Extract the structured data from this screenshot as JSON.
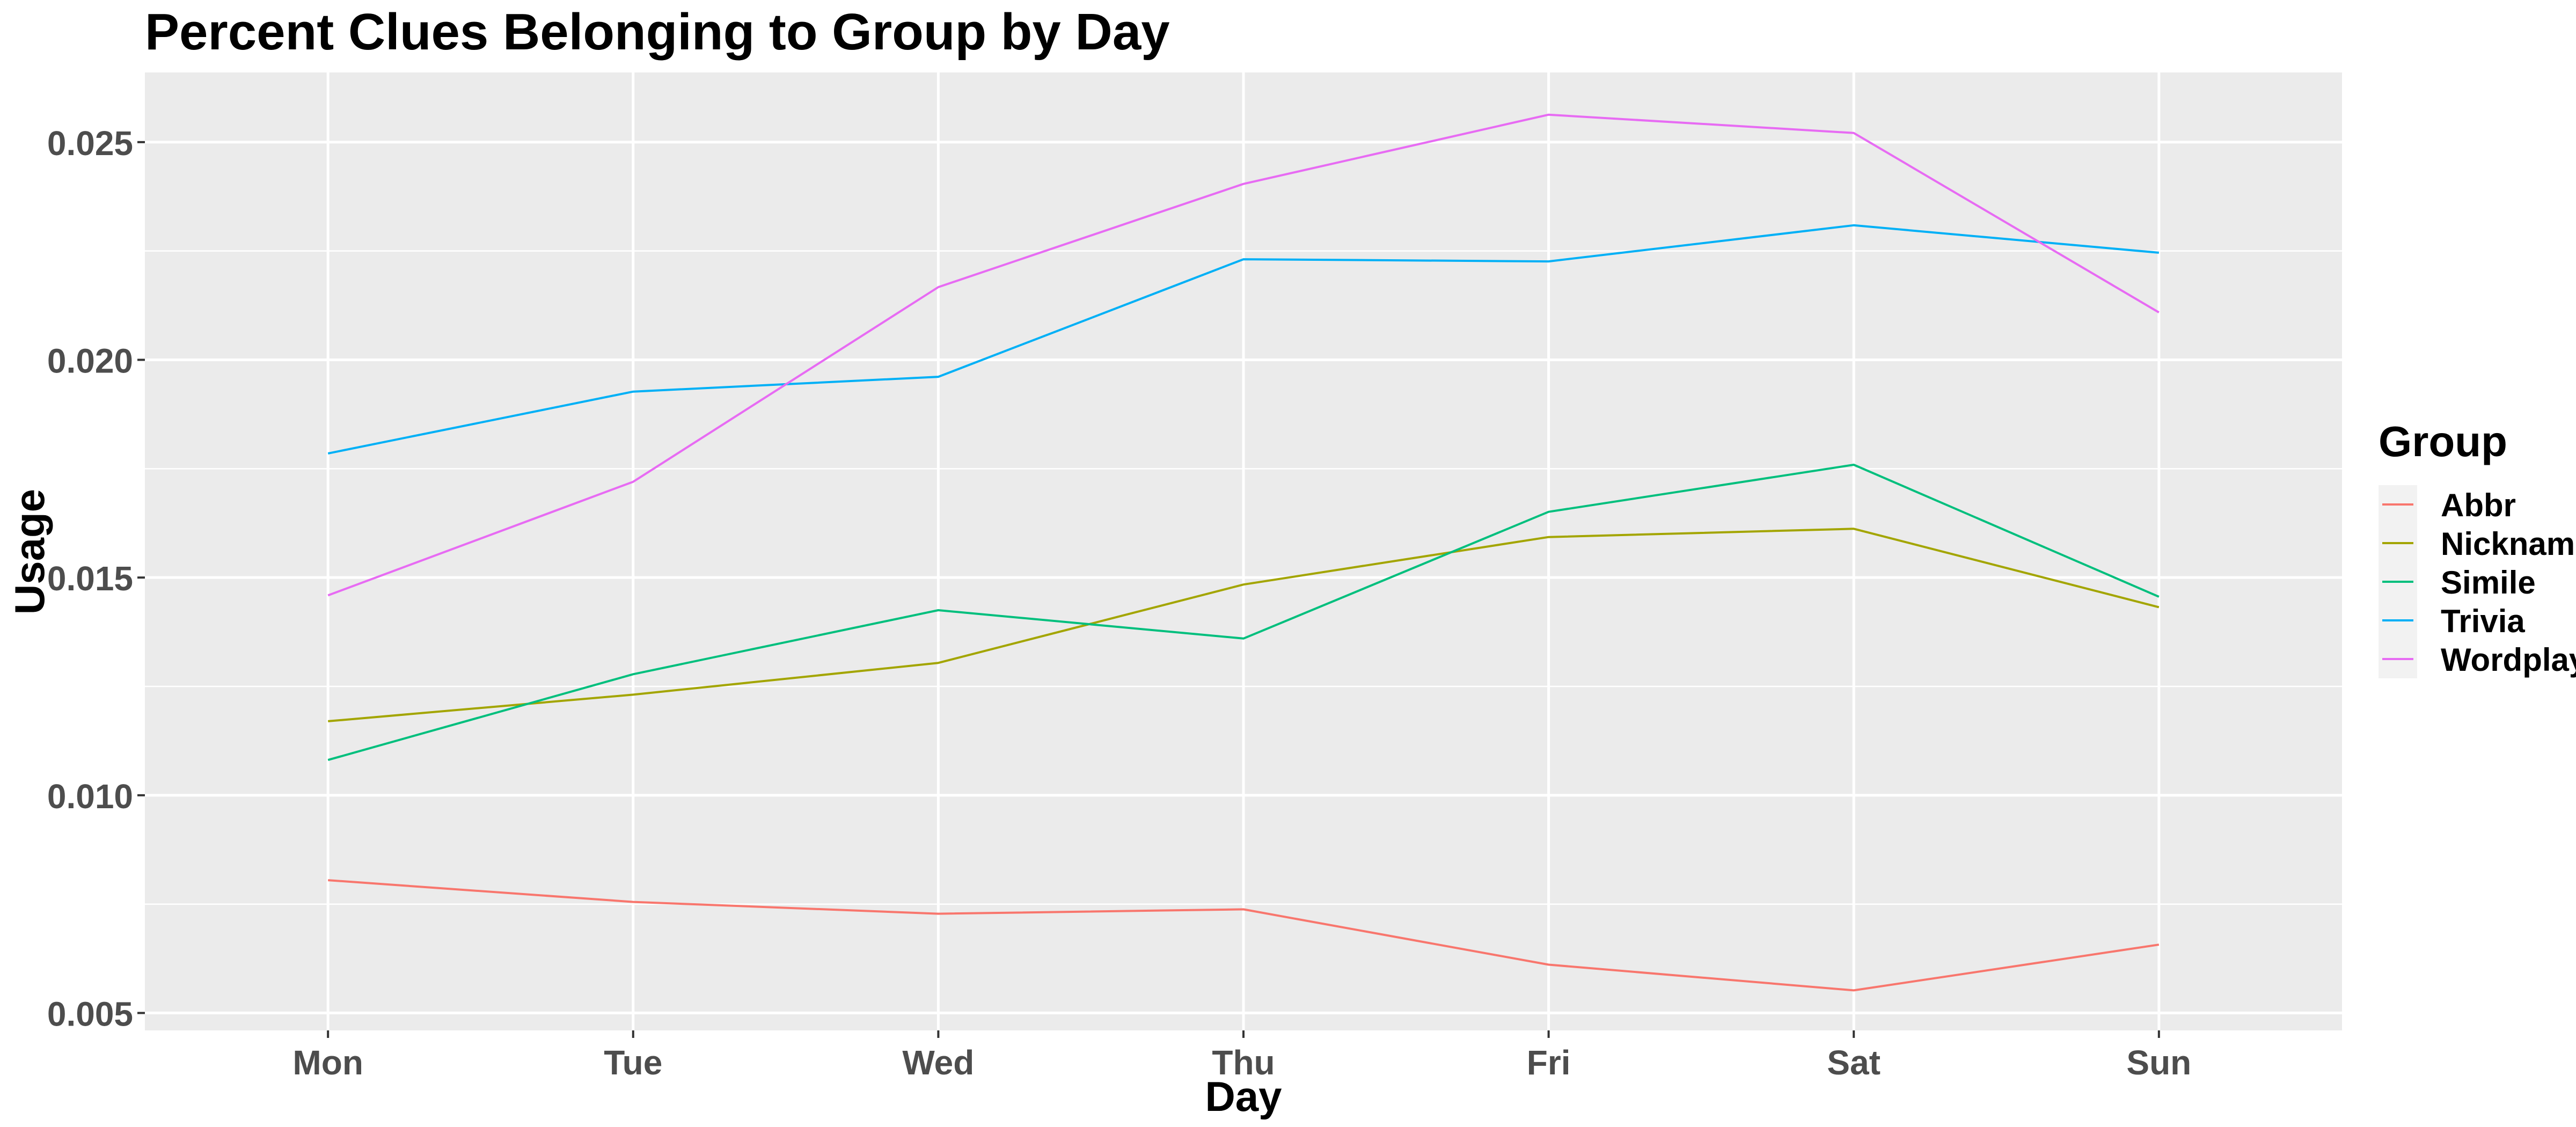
{
  "chart_data": {
    "type": "line",
    "title": "Percent Clues Belonging to Group by Day",
    "xlabel": "Day",
    "ylabel": "Usage",
    "categories": [
      "Mon",
      "Tue",
      "Wed",
      "Thu",
      "Fri",
      "Sat",
      "Sun"
    ],
    "ylim": [
      0.0046,
      0.0266
    ],
    "yticks": [
      0.005,
      0.01,
      0.015,
      0.02,
      0.025
    ],
    "ytick_labels": [
      "0.005",
      "0.010",
      "0.015",
      "0.020",
      "0.025"
    ],
    "grid": true,
    "legend": {
      "title": "Group",
      "position": "right"
    },
    "series": [
      {
        "name": "Abbr",
        "color": "#F8766D",
        "values": [
          0.00805,
          0.00755,
          0.00728,
          0.00738,
          0.00611,
          0.00552,
          0.00657
        ]
      },
      {
        "name": "Nickname",
        "color": "#A3A500",
        "values": [
          0.0117,
          0.01231,
          0.01304,
          0.01484,
          0.01593,
          0.01612,
          0.01432
        ]
      },
      {
        "name": "Simile",
        "color": "#00BF7D",
        "values": [
          0.01081,
          0.01278,
          0.01425,
          0.0136,
          0.01651,
          0.01759,
          0.01456
        ]
      },
      {
        "name": "Trivia",
        "color": "#00B0F6",
        "values": [
          0.01785,
          0.01927,
          0.01961,
          0.02231,
          0.02226,
          0.02309,
          0.02246
        ]
      },
      {
        "name": "Wordplay",
        "color": "#E76BF3",
        "values": [
          0.01459,
          0.0172,
          0.02167,
          0.02404,
          0.02563,
          0.02521,
          0.02109
        ]
      }
    ]
  }
}
